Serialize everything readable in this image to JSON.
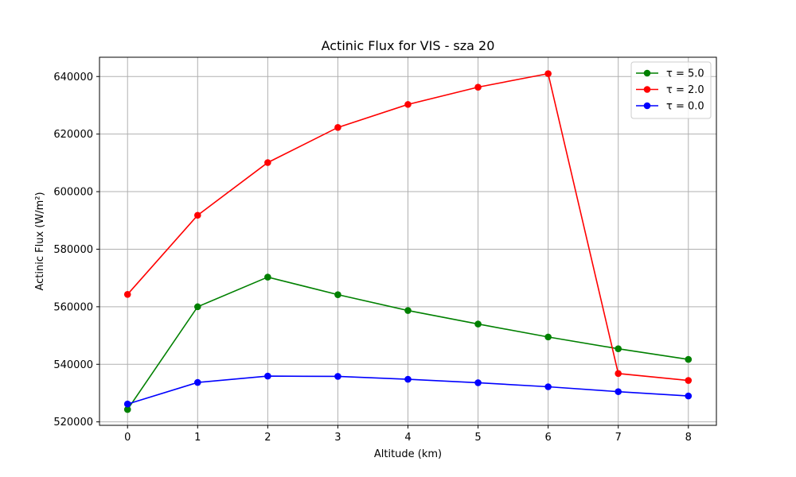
{
  "chart_data": {
    "type": "line",
    "title": "Actinic Flux for VIS - sza 20",
    "xlabel": "Altitude (km)",
    "ylabel": "Actinic Flux (W/m²)",
    "x": [
      0,
      1,
      2,
      3,
      4,
      5,
      6,
      7,
      8
    ],
    "xlim": [
      -0.4,
      8.4
    ],
    "ylim": [
      518800,
      646700
    ],
    "xticks": [
      0,
      1,
      2,
      3,
      4,
      5,
      6,
      7,
      8
    ],
    "yticks": [
      520000,
      540000,
      560000,
      580000,
      600000,
      620000,
      640000
    ],
    "grid": true,
    "legend_position": "top-right",
    "series": [
      {
        "name": "τ = 5.0",
        "color": "#008000",
        "marker": "circle",
        "values": [
          524300,
          560000,
          570300,
          564200,
          558700,
          554000,
          549500,
          545400,
          541700
        ]
      },
      {
        "name": "τ = 2.0",
        "color": "#ff0000",
        "marker": "circle",
        "values": [
          564300,
          591800,
          610100,
          622300,
          630300,
          636300,
          641000,
          536800,
          534400
        ]
      },
      {
        "name": "τ = 0.0",
        "color": "#0000ff",
        "marker": "circle",
        "values": [
          526200,
          533700,
          535900,
          535800,
          534800,
          533600,
          532200,
          530500,
          529000
        ]
      }
    ]
  }
}
